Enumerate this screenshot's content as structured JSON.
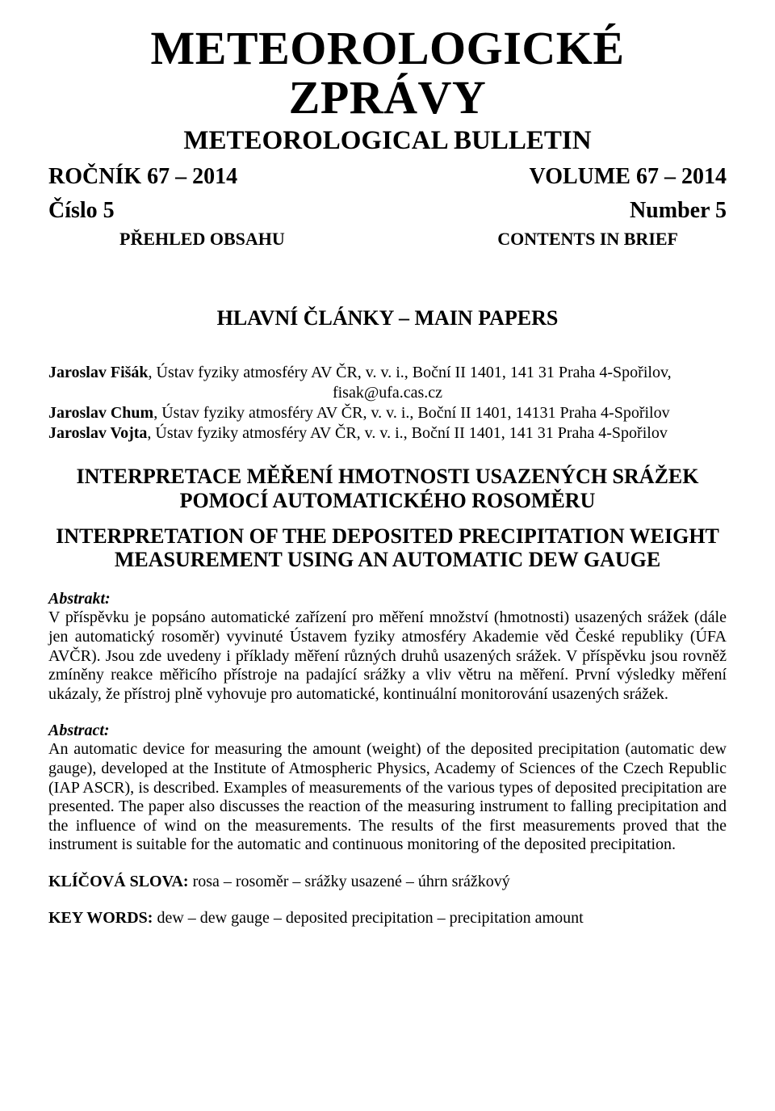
{
  "masthead": {
    "title_line1": "METEOROLOGICKÉ",
    "title_line2": "ZPRÁVY",
    "subtitle": "METEOROLOGICAL BULLETIN"
  },
  "issue": {
    "volume_cz": "ROČNÍK 67 – 2014",
    "volume_en": "VOLUME 67 – 2014",
    "number_cz": "Číslo 5",
    "number_en": "Number 5",
    "overview_cz": "PŘEHLED OBSAHU",
    "overview_en": "CONTENTS IN BRIEF"
  },
  "section_header": "HLAVNÍ ČLÁNKY – MAIN PAPERS",
  "authors": {
    "a1_name": "Jaroslav Fišák",
    "a1_affil": ", Ústav fyziky atmosféry AV ČR, v. v. i., Boční II 1401, 141 31 Praha 4-Spořilov,",
    "a1_email": "fisak@ufa.cas.cz",
    "a2_name": "Jaroslav Chum",
    "a2_affil": ", Ústav fyziky atmosféry AV ČR, v. v. i., Boční II 1401, 14131 Praha 4-Spořilov",
    "a3_name": "Jaroslav Vojta",
    "a3_affil": ", Ústav fyziky atmosféry AV ČR, v. v. i., Boční II 1401, 141 31 Praha 4-Spořilov"
  },
  "article": {
    "title_cz": "INTERPRETACE MĚŘENÍ HMOTNOSTI USAZENÝCH SRÁŽEK POMOCÍ AUTOMATICKÉHO ROSOMĚRU",
    "title_en": "INTERPRETATION OF THE DEPOSITED PRECIPITATION WEIGHT MEASUREMENT USING AN AUTOMATIC DEW GAUGE"
  },
  "abstract_cz": {
    "label": "Abstrakt:",
    "text": "V příspěvku je popsáno automatické zařízení pro měření množství (hmotnosti) usazených srážek (dále jen automatický rosoměr) vyvinuté Ústavem fyziky atmosféry Akademie věd České republiky (ÚFA AVČR). Jsou zde uvedeny i příklady měření různých druhů usazených srážek. V příspěvku jsou rovněž zmíněny reakce měřicího přístroje na padající srážky a vliv větru na měření. První výsledky měření ukázaly, že přístroj plně vyhovuje pro automatické, kontinuální monitorování usazených srážek."
  },
  "abstract_en": {
    "label": "Abstract:",
    "text": "An automatic device for measuring the amount (weight) of the deposited precipitation (automatic dew gauge), developed at the Institute of Atmospheric Physics, Academy of Sciences of the Czech Republic (IAP ASCR), is described. Examples of measurements of the various types of deposited precipitation are presented. The paper also discusses the reaction of the measuring instrument to falling precipitation and the influence of wind on the measurements. The results of the first measurements proved that the instrument is suitable for the automatic and continuous monitoring of the deposited precipitation."
  },
  "keywords_cz": {
    "label": "KLÍČOVÁ SLOVA: ",
    "text": "rosa – rosoměr – srážky usazené – úhrn srážkový"
  },
  "keywords_en": {
    "label": "KEY WORDS: ",
    "text": "dew – dew gauge – deposited precipitation – precipitation amount"
  }
}
